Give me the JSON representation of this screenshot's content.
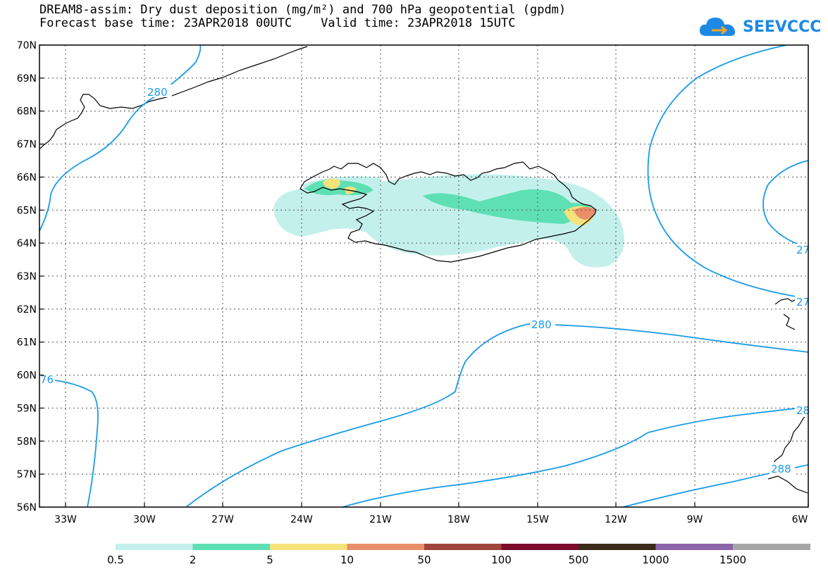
{
  "title_line1": "DREAM8-assim: Dry dust deposition (mg/m²) and 700 hPa geopotential (gpdm)",
  "title_line2": "Forecast base time: 23APR2018 00UTC    Valid time: 23APR2018 15UTC",
  "logo_text": "SEEVCCC",
  "lat_labels": [
    "70N",
    "69N",
    "68N",
    "67N",
    "66N",
    "65N",
    "64N",
    "63N",
    "62N",
    "61N",
    "60N",
    "59N",
    "58N",
    "57N",
    "56N"
  ],
  "lon_labels": [
    "33W",
    "30W",
    "27W",
    "24W",
    "21W",
    "18W",
    "15W",
    "12W",
    "9W",
    "6W"
  ],
  "contour_labels": [
    "280",
    "280",
    "76",
    "27",
    "27",
    "28",
    "288"
  ],
  "legend": {
    "labels": [
      "0.5",
      "2",
      "5",
      "10",
      "50",
      "100",
      "500",
      "1000",
      "1500"
    ],
    "colors": [
      "#c4f0ec",
      "#5ee0b4",
      "#f5e27a",
      "#e98f6a",
      "#a0453e",
      "#7a0a2a",
      "#3a2a18",
      "#8c64a8",
      "#a6a6a6"
    ]
  },
  "colors": {
    "contour": "#1a9be8",
    "coast": "#000000",
    "grid": "#555555"
  }
}
